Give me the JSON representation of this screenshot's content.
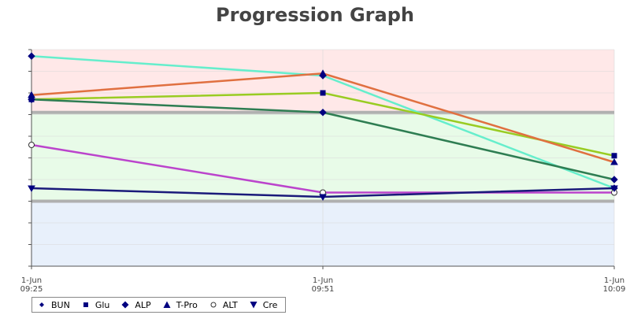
{
  "chart_data": {
    "type": "line",
    "title": "Progression Graph",
    "xlabel": "",
    "ylabel": "",
    "x": [
      "1-Jun\n09:25",
      "1-Jun\n09:51",
      "1-Jun\n10:09"
    ],
    "x_labels": [
      {
        "line1": "1-Jun",
        "line2": "09:25"
      },
      {
        "line1": "1-Jun",
        "line2": "09:51"
      },
      {
        "line1": "1-Jun",
        "line2": "10:09"
      }
    ],
    "ylim": [
      0,
      10
    ],
    "grid": true,
    "legend_position": "bottom-left",
    "bands": [
      {
        "name": "high",
        "from": 7.1,
        "to": 10,
        "color": "#ffe8e8"
      },
      {
        "name": "normal",
        "from": 3,
        "to": 7.1,
        "color": "#e8fbe8"
      },
      {
        "name": "low",
        "from": 0,
        "to": 3,
        "color": "#e8f0fb"
      }
    ],
    "thresholds": [
      7.1,
      3
    ],
    "series": [
      {
        "name": "BUN",
        "color": "#66eecc",
        "marker": "diamond",
        "values": [
          9.7,
          8.8,
          3.6
        ]
      },
      {
        "name": "Glu",
        "color": "#99cc22",
        "marker": "square",
        "values": [
          7.7,
          8.0,
          5.1
        ]
      },
      {
        "name": "ALP",
        "color": "#2e7d52",
        "marker": "diamond",
        "values": [
          7.7,
          7.1,
          4.0
        ]
      },
      {
        "name": "T-Pro",
        "color": "#e07040",
        "marker": "triangle",
        "values": [
          7.9,
          8.9,
          4.8
        ]
      },
      {
        "name": "ALT",
        "color": "#bb44cc",
        "marker": "circle",
        "values": [
          5.6,
          3.4,
          3.4
        ]
      },
      {
        "name": "Cre",
        "color": "#1a1a7a",
        "marker": "triangledown",
        "values": [
          3.6,
          3.2,
          3.6
        ]
      }
    ]
  },
  "legend": {
    "items": [
      {
        "label": "BUN",
        "icon": "diamond-small-icon",
        "color": "#000080"
      },
      {
        "label": "Glu",
        "icon": "square-icon",
        "color": "#000080"
      },
      {
        "label": "ALP",
        "icon": "diamond-icon",
        "color": "#000080"
      },
      {
        "label": "T-Pro",
        "icon": "triangle-up-icon",
        "color": "#000080"
      },
      {
        "label": "ALT",
        "icon": "circle-icon",
        "color": "#000080"
      },
      {
        "label": "Cre",
        "icon": "triangle-down-icon",
        "color": "#000080"
      }
    ]
  }
}
